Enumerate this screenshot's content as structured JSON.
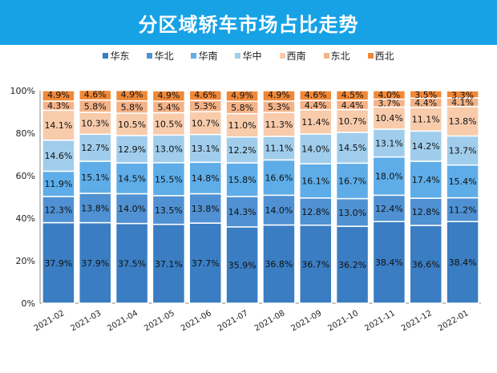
{
  "chart_data": {
    "type": "bar",
    "stacked": true,
    "title": "分区域轿车市场占比走势",
    "categories": [
      "2021-02",
      "2021-03",
      "2021-04",
      "2021-05",
      "2021-06",
      "2021-07",
      "2021-08",
      "2021-09",
      "2021-10",
      "2021-11",
      "2021-12",
      "2022-01"
    ],
    "series": [
      {
        "name": "华东",
        "color": "#3a7dc2",
        "values": [
          37.9,
          37.9,
          37.5,
          37.1,
          37.7,
          35.9,
          36.8,
          36.7,
          36.2,
          38.4,
          36.6,
          38.4
        ]
      },
      {
        "name": "华北",
        "color": "#4f91d3",
        "values": [
          12.3,
          13.8,
          14.0,
          13.5,
          13.8,
          14.3,
          14.0,
          12.8,
          13.0,
          12.4,
          12.8,
          11.2
        ]
      },
      {
        "name": "华南",
        "color": "#5eade8",
        "values": [
          11.9,
          15.1,
          14.5,
          15.5,
          14.8,
          15.8,
          16.6,
          16.1,
          16.7,
          18.0,
          17.4,
          15.4
        ]
      },
      {
        "name": "华中",
        "color": "#a0cdec",
        "values": [
          14.6,
          12.7,
          12.9,
          13.0,
          13.1,
          12.2,
          11.1,
          14.0,
          14.5,
          13.1,
          14.2,
          13.7
        ]
      },
      {
        "name": "西南",
        "color": "#f8cbab",
        "values": [
          14.1,
          10.3,
          10.5,
          10.5,
          10.7,
          11.0,
          11.3,
          11.4,
          10.7,
          10.4,
          11.1,
          13.8
        ]
      },
      {
        "name": "东北",
        "color": "#f4b287",
        "values": [
          4.3,
          5.8,
          5.8,
          5.4,
          5.3,
          5.8,
          5.3,
          4.4,
          4.4,
          3.7,
          4.4,
          4.1
        ]
      },
      {
        "name": "西北",
        "color": "#f08838",
        "values": [
          4.9,
          4.6,
          4.9,
          4.9,
          4.6,
          4.9,
          4.9,
          4.6,
          4.5,
          4.0,
          3.5,
          3.3
        ]
      }
    ],
    "ylim": [
      0,
      100
    ],
    "yticks": [
      "0%",
      "20%",
      "40%",
      "60%",
      "80%",
      "100%"
    ],
    "grid": false,
    "legend": "top"
  }
}
